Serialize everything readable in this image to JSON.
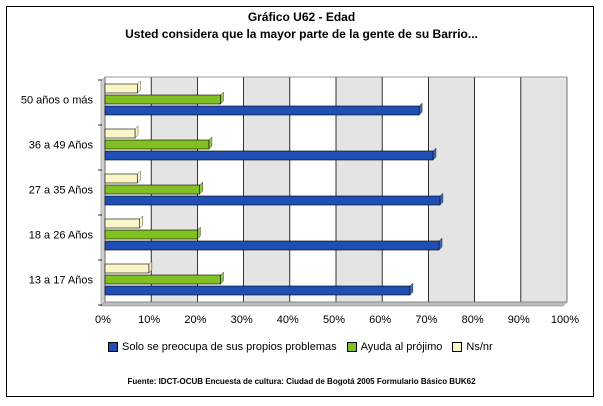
{
  "chart_data": {
    "type": "bar",
    "orientation": "horizontal",
    "title": "Gráfico U62 - Edad",
    "subtitle": "Usted considera que la mayor parte de la gente de su Barrio...",
    "categories": [
      "50 años o más",
      "36 a 49 Años",
      "27 a 35 Años",
      "18 a 26 Años",
      "13 a 17 Años"
    ],
    "series": [
      {
        "name": "Solo se preocupa de sus propios problemas",
        "color": "#1f4fb4",
        "values": [
          68.0,
          71.0,
          72.5,
          72.3,
          66.0
        ]
      },
      {
        "name": "Ayuda al prójimo",
        "color": "#80c020",
        "values": [
          25.0,
          22.5,
          20.5,
          20.0,
          25.0
        ]
      },
      {
        "name": "Ns/nr",
        "color": "#fbf6c8",
        "values": [
          7.0,
          6.5,
          7.0,
          7.5,
          9.5
        ]
      }
    ],
    "xticks": [
      "0%",
      "10%",
      "20%",
      "30%",
      "40%",
      "50%",
      "60%",
      "70%",
      "80%",
      "90%",
      "100%"
    ],
    "xlim": [
      0,
      100
    ],
    "grid": true,
    "legend": "bottom",
    "footer": "Fuente: IDCT-OCUB Encuesta de cultura: Ciudad de Bogotá 2005 Formulario Básico BUK62"
  }
}
